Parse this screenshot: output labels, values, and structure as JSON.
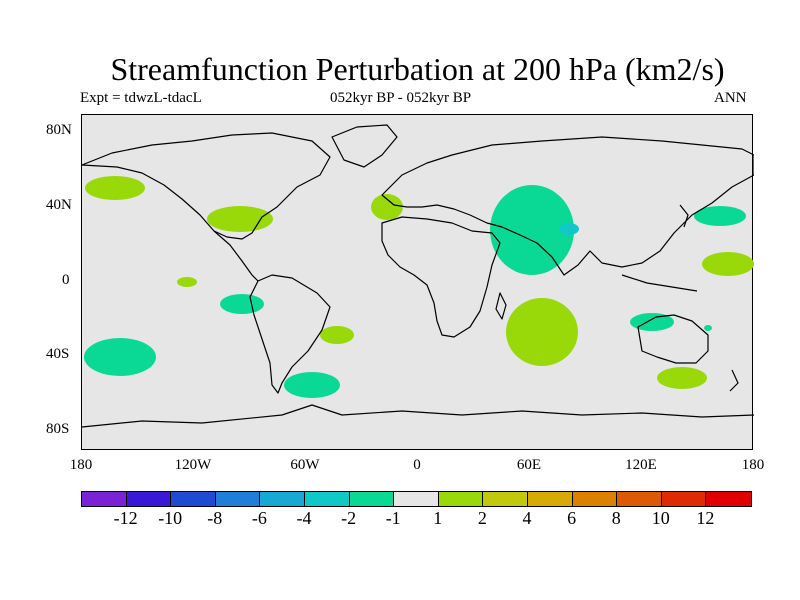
{
  "title": "Streamfunction Perturbation at 200 hPa (km2/s)",
  "left_subtitle": "Expt = tdwzL-tdacL",
  "center_subtitle": "052kyr BP - 052kyr BP",
  "right_subtitle": "ANN",
  "y_ticks": [
    "80N",
    "40N",
    "0",
    "40S",
    "80S"
  ],
  "x_ticks": [
    "180",
    "120W",
    "60W",
    "0",
    "60E",
    "120E",
    "180"
  ],
  "colorbar": {
    "colors": [
      "#7a22d6",
      "#3a18d8",
      "#1f4ad2",
      "#1f7ed8",
      "#16a9d4",
      "#10c8c8",
      "#0ad895",
      "#e6e6e6",
      "#99d90a",
      "#c2c80c",
      "#d8aa06",
      "#dc8000",
      "#dc5a04",
      "#e02a04",
      "#e00000"
    ],
    "labels": [
      "-12",
      "-10",
      "-8",
      "-6",
      "-4",
      "-2",
      "-1",
      "1",
      "2",
      "4",
      "6",
      "8",
      "10",
      "12"
    ]
  },
  "legend_colors": {
    "neg": "#0ad895",
    "neg_core": "#10c8c8",
    "pos": "#99d90a"
  }
}
